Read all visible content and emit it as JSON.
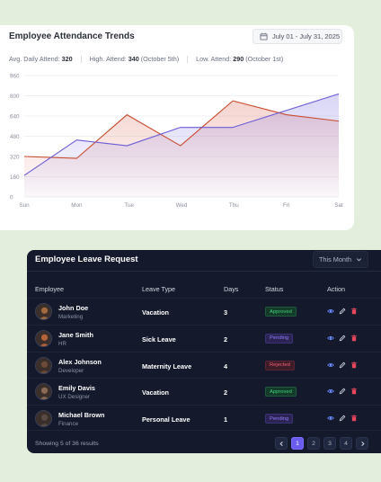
{
  "attendance": {
    "title": "Employee Attendance Trends",
    "date_range": "July 01 - July 31, 2025",
    "stats": [
      {
        "label": "Avg. Daily Attend:",
        "value": "320",
        "extra": ""
      },
      {
        "label": "High. Attend:",
        "value": "340",
        "extra": "(October 5th)"
      },
      {
        "label": "Low. Attend:",
        "value": "290",
        "extra": "(October 1st)"
      }
    ]
  },
  "chart_data": {
    "type": "area",
    "title": "Employee Attendance Trends",
    "categories": [
      "Sun",
      "Mon",
      "Tue",
      "Wed",
      "Thu",
      "Fri",
      "Sat"
    ],
    "y_ticks": [
      0,
      160,
      320,
      480,
      640,
      800,
      960
    ],
    "ylim": [
      0,
      960
    ],
    "grid": true,
    "series": [
      {
        "color": "#c84a2c",
        "fill": "#e07a6a",
        "points": [
          [
            0,
            320
          ],
          [
            1,
            305
          ],
          [
            1.96,
            650
          ],
          [
            2.98,
            405
          ],
          [
            3.98,
            760
          ],
          [
            5.0,
            650
          ],
          [
            6,
            600
          ]
        ]
      },
      {
        "color": "#6b5cd6",
        "fill": "#8b80e6",
        "points": [
          [
            0,
            170
          ],
          [
            1,
            450
          ],
          [
            1.96,
            405
          ],
          [
            2.98,
            550
          ],
          [
            3.98,
            550
          ],
          [
            6,
            815
          ]
        ]
      }
    ]
  },
  "leave": {
    "title": "Employee Leave Request",
    "filter": "This Month",
    "columns": [
      "Employee",
      "Leave Type",
      "Days",
      "Status",
      "Action"
    ],
    "rows": [
      {
        "name": "John Doe",
        "role": "Marketing",
        "type": "Vacation",
        "days": "3",
        "status": "Approved",
        "status_key": "approved",
        "avatar_color": "#a36a3f"
      },
      {
        "name": "Jane Smith",
        "role": "HR",
        "type": "Sick Leave",
        "days": "2",
        "status": "Pending",
        "status_key": "pending",
        "avatar_color": "#b5633a"
      },
      {
        "name": "Alex Johnson",
        "role": "Developer",
        "type": "Maternity Leave",
        "days": "4",
        "status": "Rejected",
        "status_key": "rejected",
        "avatar_color": "#6e4a3a"
      },
      {
        "name": "Emily Davis",
        "role": "UX Designer",
        "type": "Vacation",
        "days": "2",
        "status": "Approved",
        "status_key": "approved",
        "avatar_color": "#8a6a55"
      },
      {
        "name": "Michael Brown",
        "role": "Finance",
        "type": "Personal Leave",
        "days": "1",
        "status": "Pending",
        "status_key": "pending",
        "avatar_color": "#5a4a44"
      }
    ],
    "showing": "Showing 5 of 36 results",
    "pages": [
      "1",
      "2",
      "3",
      "4"
    ],
    "current_page": "1"
  },
  "colors": {
    "accent": "#6b5cf0",
    "view_icon": "#6b8cff",
    "edit_icon": "#c9ced8",
    "delete_icon": "#e8475c"
  },
  "icons": [
    "calendar-icon",
    "chevron-down-icon",
    "eye-icon",
    "pencil-icon",
    "trash-icon",
    "chevron-left-icon",
    "chevron-right-icon"
  ]
}
